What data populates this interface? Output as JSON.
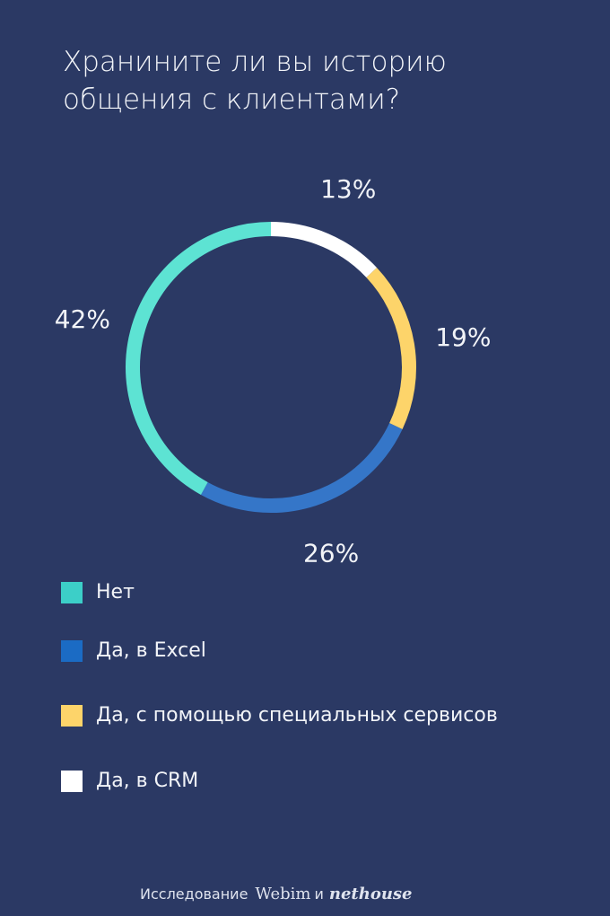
{
  "title": "Хранините ли вы историю общения с клиентами?",
  "chart_data": {
    "type": "pie",
    "donut": true,
    "categories": [
      "Нет",
      "Да, в Excel",
      "Да, с помощью специальных сервисов",
      "Да, в CRM"
    ],
    "values": [
      42,
      26,
      19,
      13
    ],
    "value_labels": [
      "42%",
      "26%",
      "19%",
      "13%"
    ],
    "colors": [
      "#5de3d3",
      "#3576c8",
      "#fdd46a",
      "#ffffff"
    ],
    "legend_colors": [
      "#3ccfc8",
      "#1b6bc4",
      "#fdd46a",
      "#ffffff"
    ],
    "legend_position": "bottom-left",
    "start_angle": "12 o'clock",
    "direction": "clockwise, starting with Да, в CRM"
  },
  "legend": [
    {
      "label": "Нет"
    },
    {
      "label": "Да, в Excel"
    },
    {
      "label": "Да, с помощью специальных сервисов"
    },
    {
      "label": "Да, в CRM"
    }
  ],
  "footer": {
    "text": "Исследование",
    "brand1": "Webim",
    "conj": "и",
    "brand2": "nethouse"
  }
}
